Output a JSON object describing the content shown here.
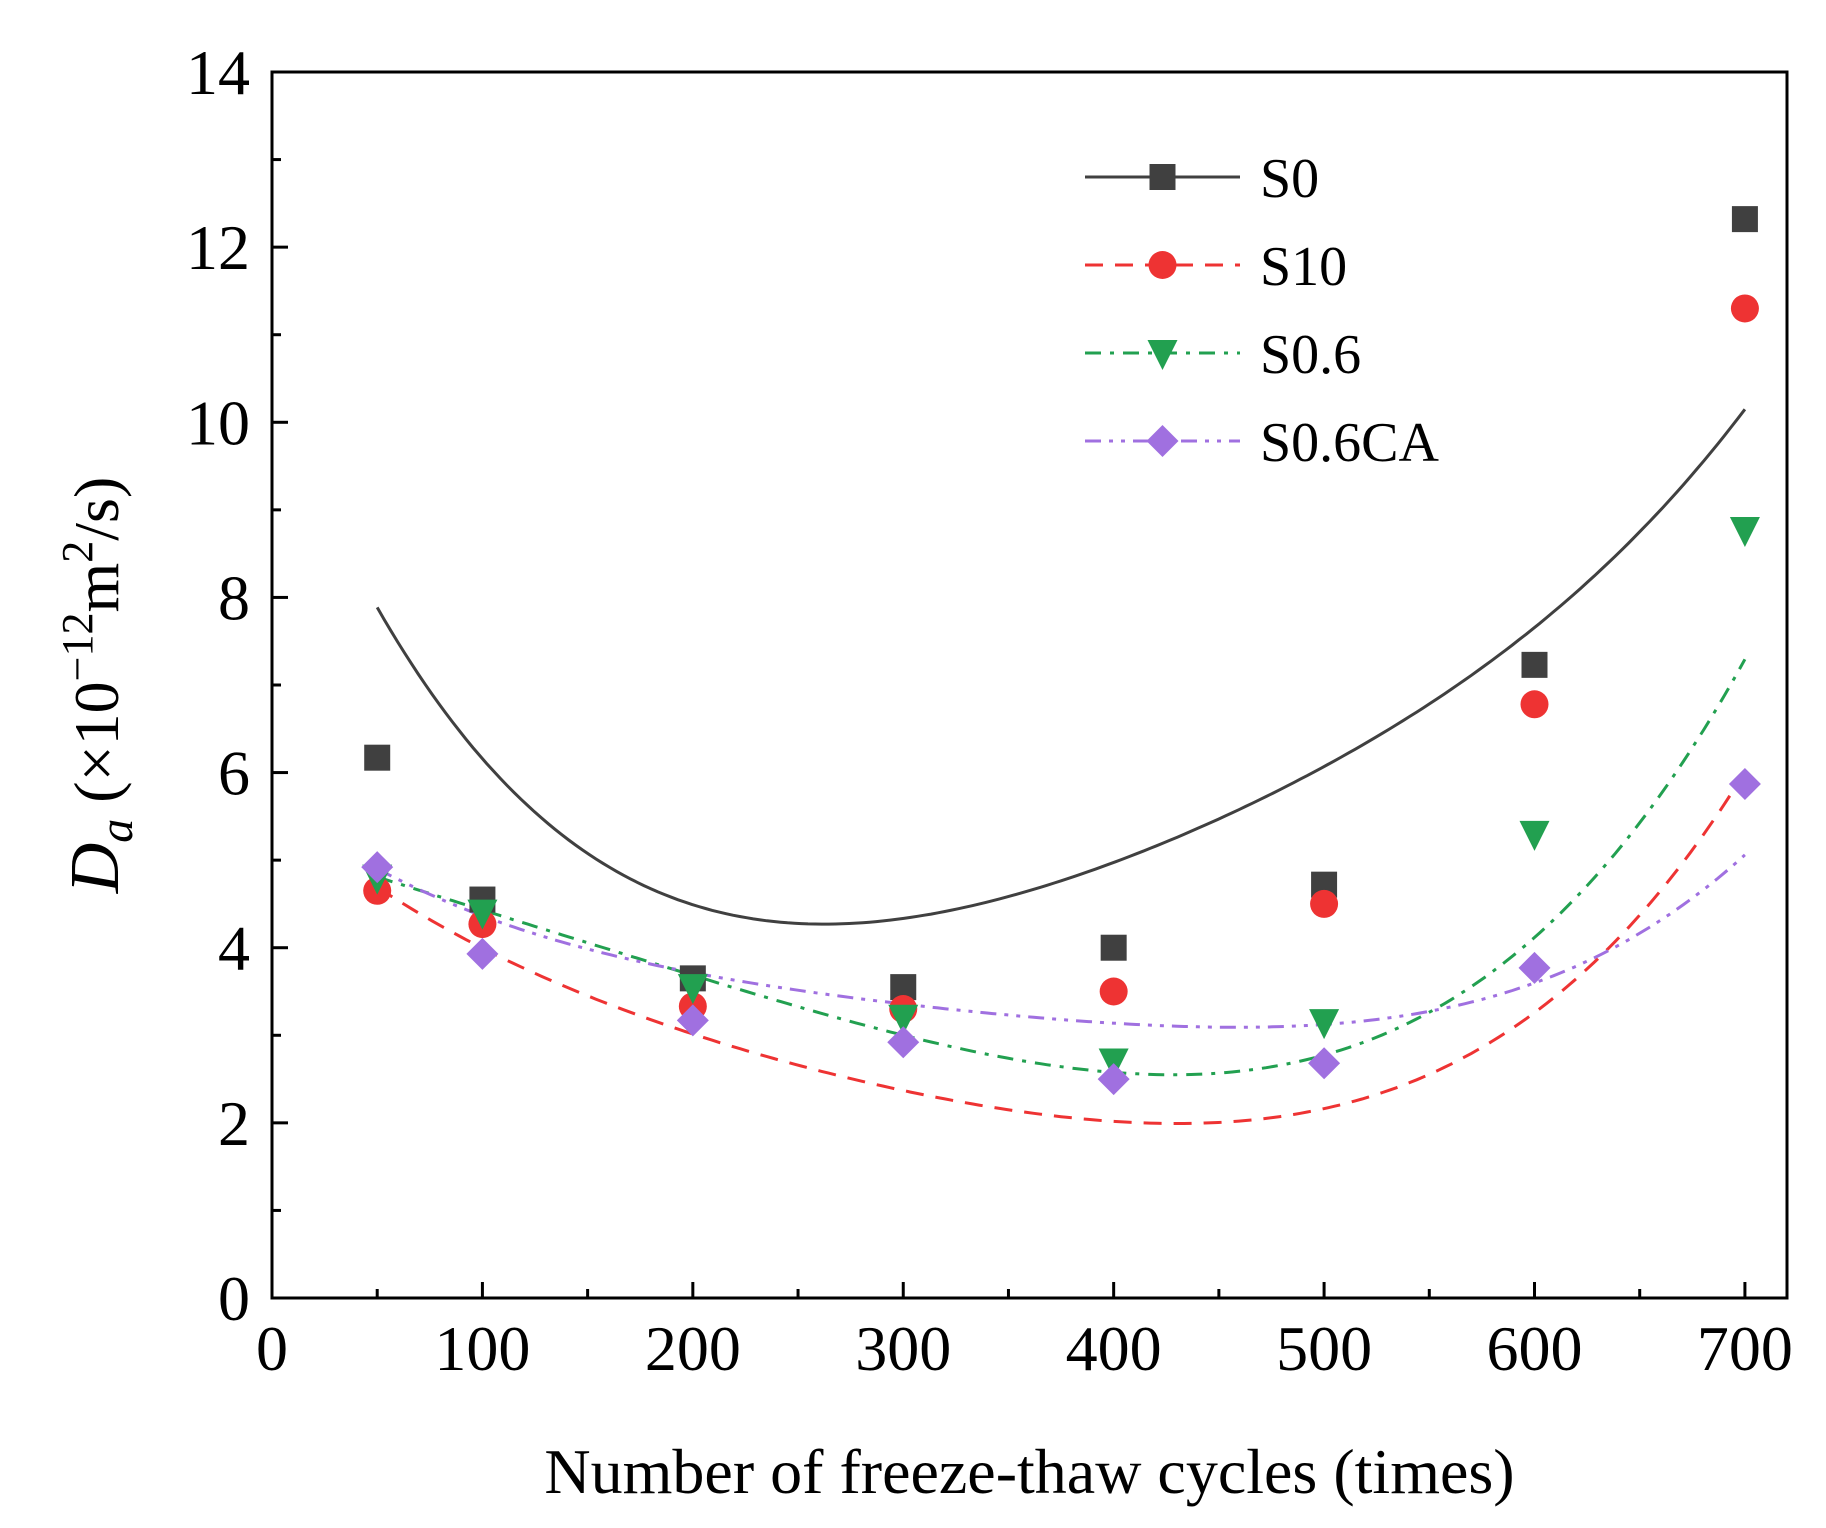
{
  "chart_data": {
    "type": "line",
    "title": "",
    "xlabel": "Number of freeze-thaw cycles (times)",
    "ylabel": {
      "symbol": "D",
      "subscript": "a",
      "unit_open": " (×10",
      "exponent": "−12",
      "unit_mid": "m",
      "unit_exp": "2",
      "unit_close": "/s)"
    },
    "xlim": [
      0,
      720
    ],
    "ylim": [
      0,
      14
    ],
    "xticks": [
      0,
      100,
      200,
      300,
      400,
      500,
      600,
      700
    ],
    "xtick_labels": [
      "0",
      "100",
      "200",
      "300",
      "400",
      "500",
      "600",
      "700"
    ],
    "yticks": [
      0,
      2,
      4,
      6,
      8,
      10,
      12,
      14
    ],
    "ytick_labels": [
      "0",
      "2",
      "4",
      "6",
      "8",
      "10",
      "12",
      "14"
    ],
    "grid": false,
    "legend_position": "top-right",
    "x": [
      50,
      100,
      200,
      300,
      400,
      500,
      600,
      700
    ],
    "series": [
      {
        "name": "S0",
        "color": "#404040",
        "marker": "square",
        "line_style": "solid",
        "values": [
          6.17,
          4.55,
          3.65,
          3.55,
          4.0,
          4.72,
          7.23,
          12.32
        ],
        "fit_coefficients": [
          10.43,
          -0.06031,
          0.000202,
          -2.76e-07,
          1.567e-10
        ]
      },
      {
        "name": "S10",
        "color": "#ee3333",
        "marker": "circle",
        "line_style": "dashed",
        "values": [
          4.65,
          4.27,
          3.33,
          3.3,
          3.5,
          4.5,
          6.78,
          11.3
        ],
        "fit_coefficients": [
          5.6,
          -0.02075,
          5.7e-05,
          -1.1e-07,
          1.03e-10
        ]
      },
      {
        "name": "S0.6",
        "color": "#22a050",
        "marker": "triangle-down",
        "line_style": "dash-dot",
        "values": [
          4.8,
          4.4,
          3.55,
          3.2,
          2.7,
          3.15,
          5.3,
          8.77
        ],
        "fit_coefficients": [
          5.2,
          -0.0081,
          6.82e-06,
          -3.45e-08,
          6.77e-11
        ]
      },
      {
        "name": "S0.6CA",
        "color": "#a070e0",
        "marker": "diamond",
        "line_style": "dash-dot-dot",
        "values": [
          4.92,
          3.93,
          3.17,
          2.92,
          2.5,
          2.68,
          3.77,
          5.87
        ],
        "fit_coefficients": [
          5.67,
          -0.01813,
          6.13e-05,
          -1.157e-07,
          9.05e-11
        ]
      }
    ]
  }
}
